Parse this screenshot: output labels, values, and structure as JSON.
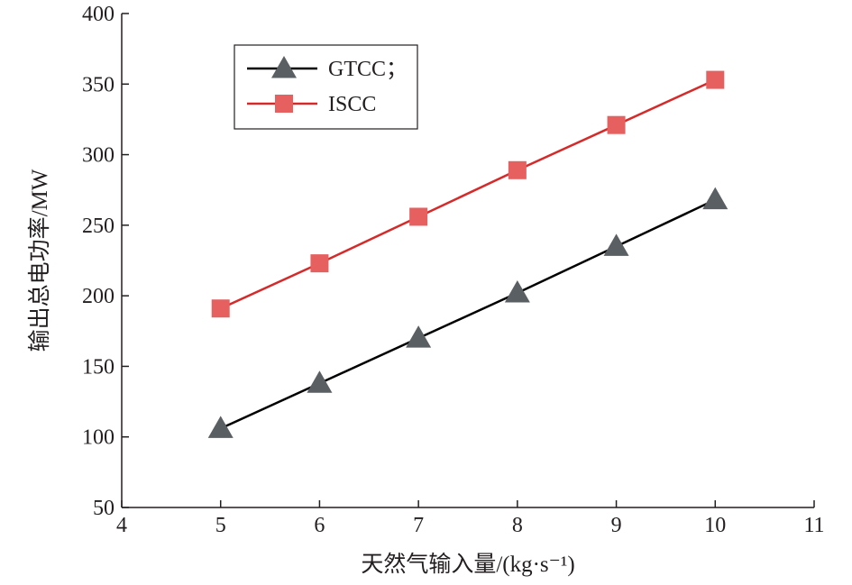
{
  "chart_data": {
    "type": "line",
    "title": "",
    "xlabel": "天然气输入量/(kg·s⁻¹)",
    "ylabel": "输出总电功率/MW",
    "xlim": [
      4,
      11
    ],
    "ylim": [
      50,
      400
    ],
    "x_ticks": [
      4,
      5,
      6,
      7,
      8,
      9,
      10,
      11
    ],
    "y_ticks": [
      50,
      100,
      150,
      200,
      250,
      300,
      350,
      400
    ],
    "x": [
      5,
      6,
      7,
      8,
      9,
      10
    ],
    "grid": false,
    "legend_position": "top-left",
    "series": [
      {
        "name": "GTCC；",
        "marker": "triangle",
        "line_color": "#000000",
        "marker_color": "#5a5f63",
        "values": [
          106,
          138,
          170,
          202,
          235,
          268
        ]
      },
      {
        "name": "ISCC",
        "marker": "square",
        "line_color": "#d62a2a",
        "marker_color": "#e66060",
        "values": [
          191,
          223,
          256,
          289,
          321,
          353
        ]
      }
    ]
  }
}
